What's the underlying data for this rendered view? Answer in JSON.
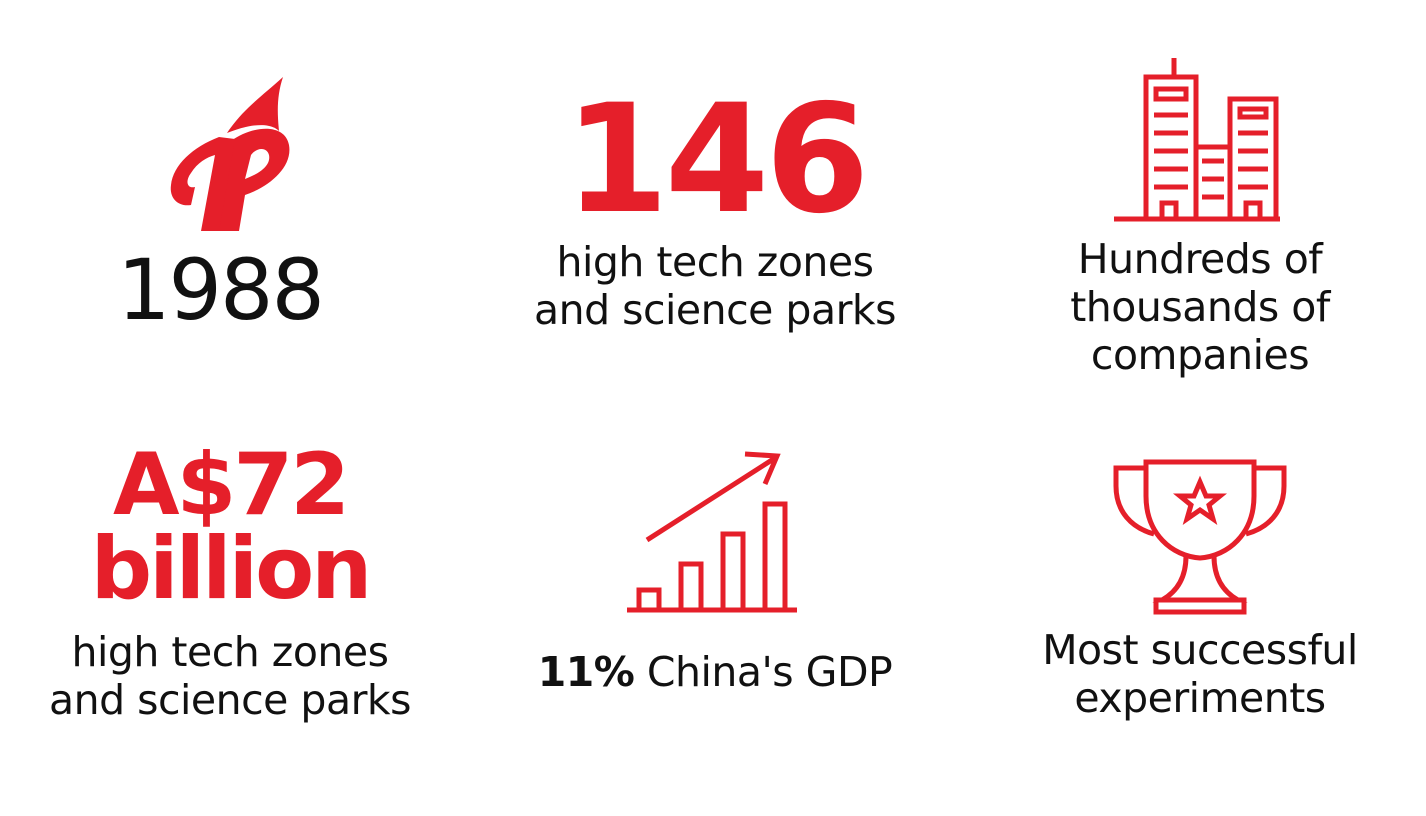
{
  "colors": {
    "accent": "#e51f2a",
    "text": "#111111",
    "background": "#ffffff"
  },
  "cards": {
    "founding": {
      "icon": "torch-logo-icon",
      "year": "1988"
    },
    "zones": {
      "number": "146",
      "line1": "high tech zones",
      "line2": "and science parks"
    },
    "companies": {
      "icon": "buildings-icon",
      "line1": "Hundreds of",
      "line2": "thousands of",
      "line3": "companies"
    },
    "revenue": {
      "amount": "A$72",
      "unit": "billion",
      "line1": "high tech zones",
      "line2": "and science parks"
    },
    "gdp": {
      "icon": "growth-chart-icon",
      "percent": "11%",
      "label": "China's GDP"
    },
    "experiments": {
      "icon": "trophy-star-icon",
      "line1": "Most successful",
      "line2": "experiments"
    }
  }
}
